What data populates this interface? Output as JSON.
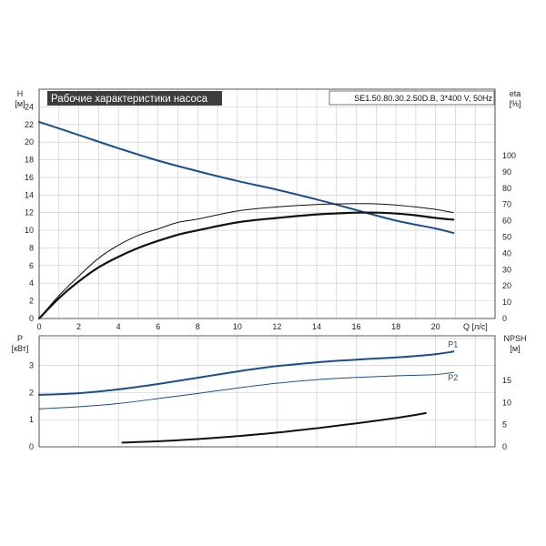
{
  "title": "Рабочие характеристики насоса",
  "model": "SE1.50.80.30.2.50D.B, 3*400 V, 50Hz",
  "colors": {
    "grid": "#c8c8c8",
    "frame": "#333333",
    "title_bg": "#3d3d3d",
    "model_border": "#555555",
    "blue": "#1a4f8a",
    "black": "#111111"
  },
  "chart_data": [
    {
      "type": "line",
      "panel": "top",
      "xlabel": "Q [л/с]",
      "ylabel_left": "H\n[м]",
      "ylabel_right": "eta\n[%]",
      "xlim": [
        0,
        23
      ],
      "ylim_left": [
        0,
        26
      ],
      "ylim_right": [
        0,
        120
      ],
      "x_ticks": [
        0,
        2,
        4,
        6,
        8,
        10,
        12,
        14,
        16,
        18,
        20
      ],
      "y_ticks_left": [
        0,
        2,
        4,
        6,
        8,
        10,
        12,
        14,
        16,
        18,
        20,
        22,
        24
      ],
      "y_ticks_right": [
        0,
        10,
        20,
        30,
        40,
        50,
        60,
        70,
        80,
        90,
        100
      ],
      "grid": true,
      "series": [
        {
          "axis": "left",
          "color": "#1a4f8a",
          "width": 2,
          "x": [
            0,
            2,
            4,
            6,
            8,
            10,
            12,
            14,
            16,
            18,
            20,
            20.9
          ],
          "y": [
            22.3,
            20.8,
            19.3,
            17.9,
            16.7,
            15.6,
            14.6,
            13.5,
            12.3,
            11.1,
            10.2,
            9.7
          ]
        },
        {
          "axis": "right",
          "color": "#111111",
          "width": 1,
          "x": [
            0,
            1,
            2,
            3,
            4,
            5,
            6,
            7,
            8,
            10,
            12,
            14,
            16,
            17,
            18,
            19,
            20,
            20.9
          ],
          "y": [
            0,
            14,
            26,
            37,
            45,
            51,
            55,
            59,
            61,
            66,
            68.5,
            70,
            70.5,
            70.4,
            69.6,
            68.5,
            67,
            65
          ]
        },
        {
          "axis": "left",
          "color": "#111111",
          "width": 2.2,
          "x": [
            0,
            1,
            2,
            3,
            4,
            5,
            6,
            7,
            8,
            10,
            12,
            14,
            16,
            17,
            18,
            19,
            20,
            20.9
          ],
          "y": [
            0,
            2.3,
            4.2,
            5.8,
            7.0,
            8.0,
            8.8,
            9.5,
            10.0,
            10.9,
            11.4,
            11.8,
            12.0,
            12.0,
            11.9,
            11.7,
            11.4,
            11.2
          ]
        }
      ]
    },
    {
      "type": "line",
      "panel": "bottom",
      "ylabel_left": "P\n[кВт]",
      "ylabel_right": "NPSH\n[м]",
      "xlim": [
        0,
        23
      ],
      "ylim_left": [
        0,
        4
      ],
      "ylim_right": [
        0,
        20
      ],
      "y_ticks_left": [
        0,
        1,
        2,
        3
      ],
      "y_ticks_right": [
        0,
        5,
        10,
        15
      ],
      "grid": true,
      "series": [
        {
          "name": "P1",
          "axis": "left",
          "color": "#1a4f8a",
          "width": 2,
          "x": [
            0,
            2,
            4,
            6,
            8,
            10,
            12,
            14,
            16,
            18,
            20,
            20.9
          ],
          "y": [
            1.92,
            1.98,
            2.12,
            2.32,
            2.55,
            2.78,
            2.98,
            3.12,
            3.22,
            3.3,
            3.42,
            3.52
          ]
        },
        {
          "name": "P2",
          "axis": "left",
          "color": "#1a4f8a",
          "width": 1,
          "x": [
            0,
            2,
            4,
            6,
            8,
            10,
            12,
            14,
            16,
            18,
            20,
            20.9
          ],
          "y": [
            1.4,
            1.48,
            1.6,
            1.78,
            1.97,
            2.17,
            2.35,
            2.48,
            2.56,
            2.62,
            2.67,
            2.75
          ]
        },
        {
          "axis": "right",
          "color": "#111111",
          "width": 2,
          "x": [
            4.2,
            6,
            8,
            10,
            12,
            14,
            16,
            18,
            19.5
          ],
          "y": [
            0.95,
            1.25,
            1.75,
            2.4,
            3.2,
            4.2,
            5.3,
            6.5,
            7.6
          ]
        }
      ]
    }
  ]
}
